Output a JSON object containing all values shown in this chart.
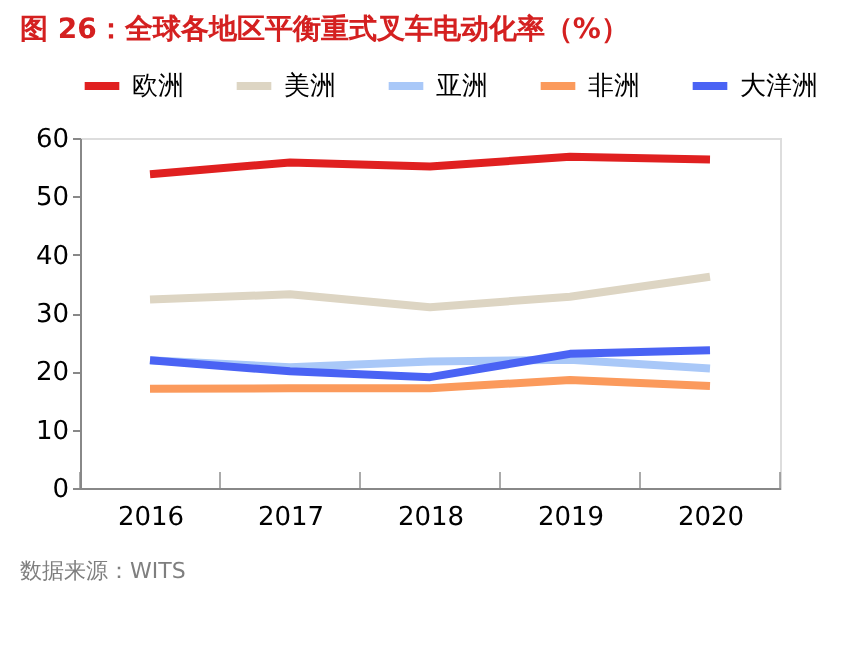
{
  "chart_data": {
    "type": "line",
    "title": "图 26：全球各地区平衡重式叉车电动化率（%）",
    "categories": [
      "2016",
      "2017",
      "2018",
      "2019",
      "2020"
    ],
    "series": [
      {
        "name": "欧洲",
        "color": "#e02020",
        "values": [
          53.8,
          55.8,
          55.1,
          56.8,
          56.3
        ]
      },
      {
        "name": "美洲",
        "color": "#ddd5c3",
        "values": [
          32.3,
          33.2,
          31.0,
          32.8,
          36.2
        ]
      },
      {
        "name": "亚洲",
        "color": "#a9c8f8",
        "values": [
          21.9,
          20.7,
          21.7,
          22.0,
          20.5
        ]
      },
      {
        "name": "非洲",
        "color": "#fb9a5c",
        "values": [
          17.0,
          17.1,
          17.1,
          18.5,
          17.5
        ]
      },
      {
        "name": "大洋洲",
        "color": "#4a63f4",
        "values": [
          21.9,
          20.0,
          19.0,
          23.0,
          23.6
        ]
      }
    ],
    "ylim": [
      0,
      60
    ],
    "yticks": [
      0,
      10,
      20,
      30,
      40,
      50,
      60
    ],
    "grid": false,
    "legend": "top",
    "marker": "none",
    "line_style": "solid",
    "annotations": [
      "数据来源：WITS"
    ]
  }
}
